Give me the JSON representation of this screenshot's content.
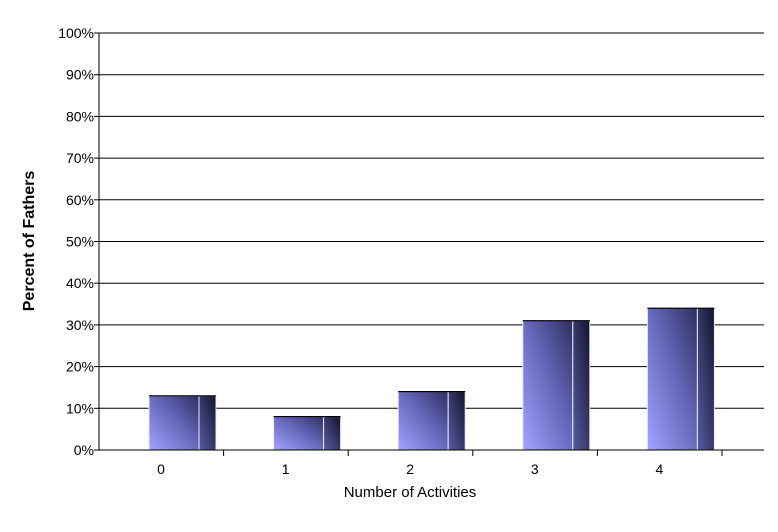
{
  "chart_data": {
    "type": "bar",
    "categories": [
      "0",
      "1",
      "2",
      "3",
      "4"
    ],
    "values": [
      13,
      8,
      14,
      31,
      34
    ],
    "xlabel": "Number of Activities",
    "ylabel": "Percent of Fathers",
    "ylim": [
      0,
      100
    ],
    "yticks": [
      "0%",
      "10%",
      "20%",
      "30%",
      "40%",
      "50%",
      "60%",
      "70%",
      "80%",
      "90%",
      "100%"
    ],
    "grid": true,
    "colors": {
      "bar_light": "#9a9cf6",
      "bar_dark": "#3a3c78",
      "bar_side": "#1c1d3c"
    }
  }
}
